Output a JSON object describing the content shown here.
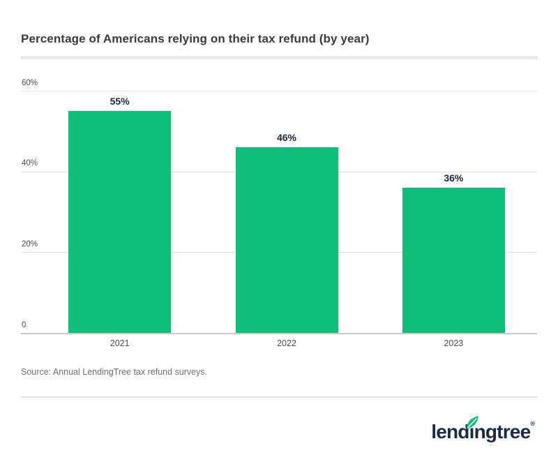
{
  "page": {
    "title": "Percentage of Americans relying on their tax refund (by year)",
    "source": "Source: Annual LendingTree tax refund surveys."
  },
  "footer": {
    "logo": {
      "pre": "lend",
      "dotless_i": "ı",
      "post": "ngtree",
      "registered": "®",
      "navy": "#1a2b49",
      "green": "#0fbe7b"
    }
  },
  "chart_data": {
    "type": "bar",
    "title": "Percentage of Americans relying on their tax refund (by year)",
    "categories": [
      "2021",
      "2022",
      "2023"
    ],
    "values": [
      55,
      46,
      36
    ],
    "value_labels": [
      "55%",
      "46%",
      "36%"
    ],
    "xlabel": "",
    "ylabel": "",
    "ylim": [
      0,
      60
    ],
    "yticks": [
      {
        "value": 60,
        "label": "60%"
      },
      {
        "value": 40,
        "label": "40%"
      },
      {
        "value": 20,
        "label": "20%"
      },
      {
        "value": 0,
        "label": "0"
      }
    ],
    "bar_color": "#0fbe7b",
    "grid": true,
    "legend": false
  }
}
